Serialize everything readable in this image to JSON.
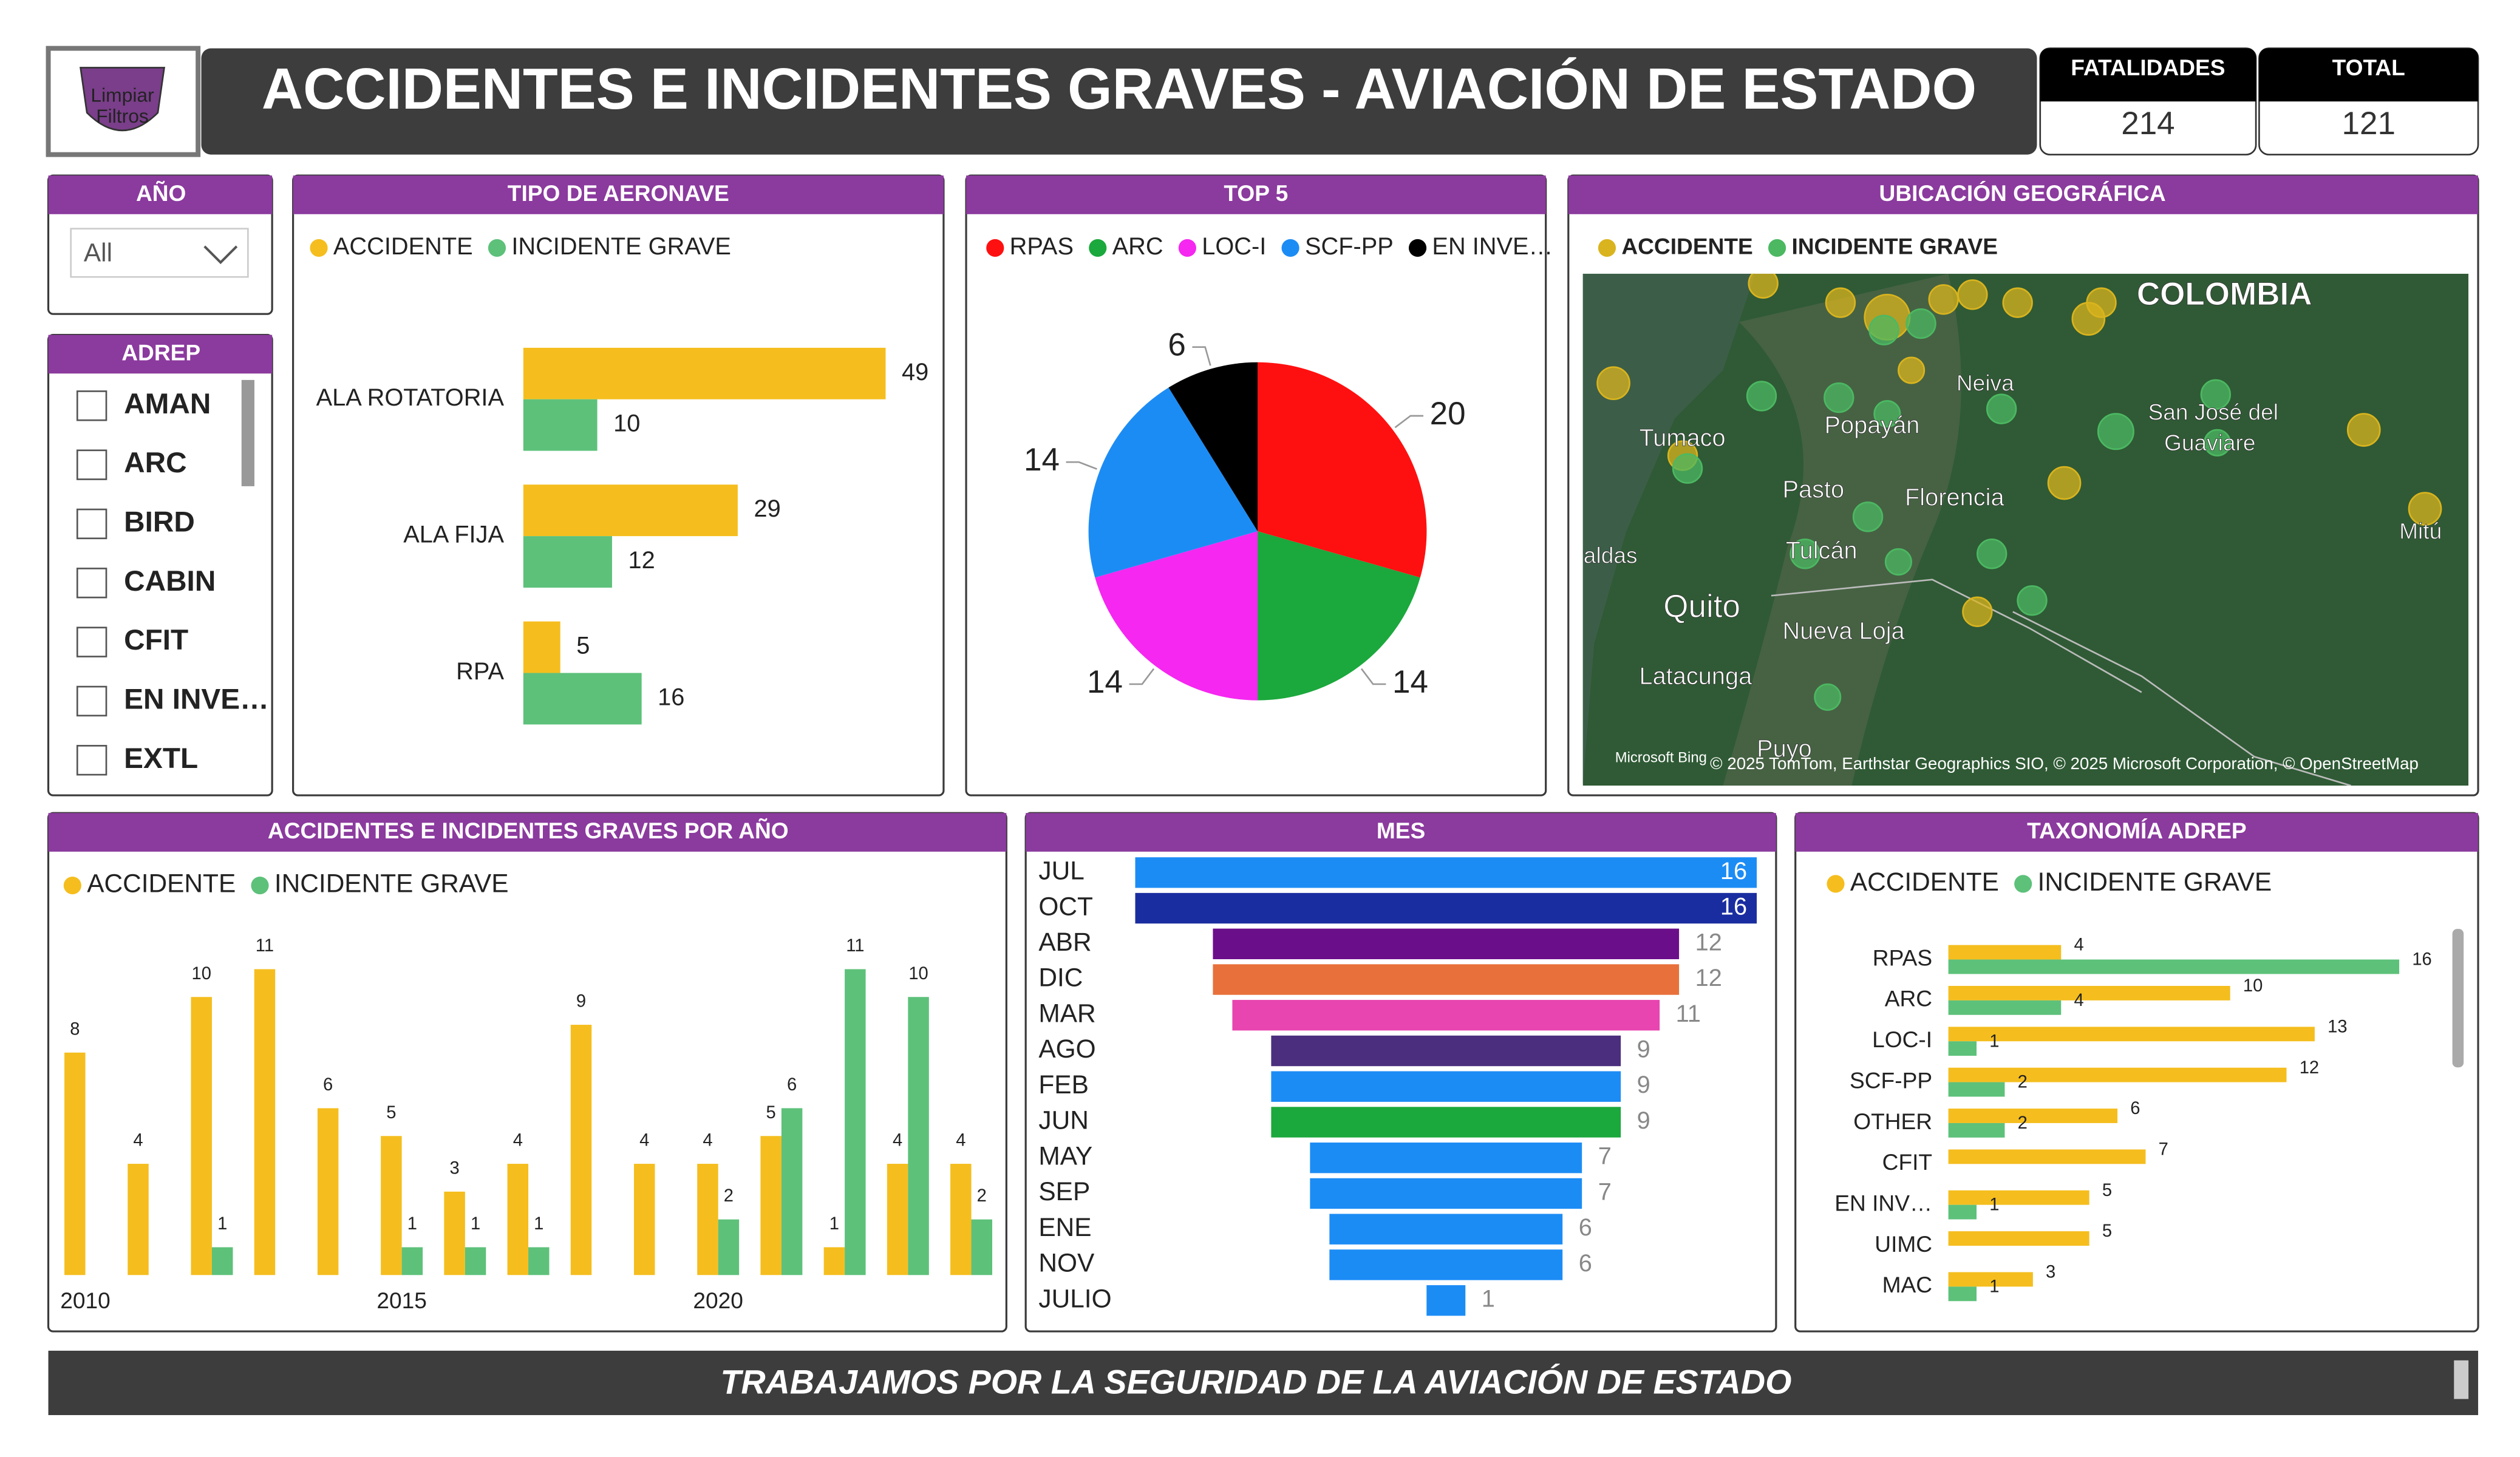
{
  "header": {
    "logo_lines": [
      "Limpiar",
      "Filtros"
    ],
    "title": "ACCIDENTES E INCIDENTES GRAVES - AVIACIÓN DE ESTADO"
  },
  "kpis": [
    {
      "label": "FATALIDADES",
      "value": 214
    },
    {
      "label": "TOTAL",
      "value": 121
    }
  ],
  "slicers": {
    "year": {
      "title": "AÑO",
      "selected": "All"
    },
    "adrep": {
      "title": "ADREP",
      "items": [
        "AMAN",
        "ARC",
        "BIRD",
        "CABIN",
        "CFIT",
        "EN INVE…",
        "EXTL"
      ]
    }
  },
  "chart_data": [
    {
      "type": "bar",
      "orientation": "horizontal",
      "title": "TIPO DE AERONAVE",
      "categories": [
        "ALA ROTATORIA",
        "ALA FIJA",
        "RPA"
      ],
      "series": [
        {
          "name": "ACCIDENTE",
          "color": "#F5BE1E",
          "values": [
            49,
            29,
            5
          ]
        },
        {
          "name": "INCIDENTE GRAVE",
          "color": "#5DC17A",
          "values": [
            10,
            12,
            16
          ]
        }
      ]
    },
    {
      "type": "pie",
      "title": "TOP 5",
      "categories": [
        "RPAS",
        "ARC",
        "LOC-I",
        "SCF-PP",
        "EN INVE…"
      ],
      "values": [
        20,
        14,
        14,
        14,
        6
      ],
      "colors": [
        "#FF1010",
        "#1BA83C",
        "#F527F0",
        "#1C8CF5",
        "#000000"
      ]
    },
    {
      "type": "bar",
      "orientation": "vertical",
      "title": "ACCIDENTES E INCIDENTES GRAVES POR AÑO",
      "categories": [
        "2010",
        null,
        null,
        null,
        null,
        "2015",
        null,
        null,
        null,
        null,
        "2020",
        null,
        null,
        null,
        null
      ],
      "series": [
        {
          "name": "ACCIDENTE",
          "color": "#F5BE1E",
          "values": [
            8,
            4,
            10,
            11,
            6,
            5,
            3,
            4,
            9,
            4,
            4,
            5,
            1,
            4,
            4
          ]
        },
        {
          "name": "INCIDENTE GRAVE",
          "color": "#5DC17A",
          "values": [
            null,
            null,
            1,
            null,
            null,
            1,
            1,
            1,
            null,
            null,
            2,
            6,
            11,
            10,
            2
          ]
        }
      ]
    },
    {
      "type": "funnel",
      "title": "MES",
      "categories": [
        "JUL",
        "OCT",
        "ABR",
        "DIC",
        "MAR",
        "AGO",
        "FEB",
        "JUN",
        "MAY",
        "SEP",
        "ENE",
        "NOV",
        "JULIO"
      ],
      "values": [
        16,
        16,
        12,
        12,
        11,
        9,
        9,
        9,
        7,
        7,
        6,
        6,
        1
      ],
      "colors": [
        "#1C8CF5",
        "#1A2DA0",
        "#6B0E8A",
        "#E8703A",
        "#E845B0",
        "#4B2F7E",
        "#1C8CF5",
        "#1BA83C",
        "#1C8CF5",
        "#1C8CF5",
        "#1C8CF5",
        "#1C8CF5",
        "#1C8CF5"
      ]
    },
    {
      "type": "bar",
      "orientation": "horizontal",
      "title": "TAXONOMÍA ADREP",
      "categories": [
        "RPAS",
        "ARC",
        "LOC-I",
        "SCF-PP",
        "OTHER",
        "CFIT",
        "EN INV…",
        "UIMC",
        "MAC"
      ],
      "series": [
        {
          "name": "ACCIDENTE",
          "color": "#F5BE1E",
          "values": [
            4,
            10,
            13,
            12,
            6,
            7,
            5,
            5,
            3
          ]
        },
        {
          "name": "INCIDENTE GRAVE",
          "color": "#5DC17A",
          "values": [
            16,
            4,
            1,
            2,
            2,
            null,
            1,
            null,
            1
          ]
        }
      ]
    }
  ],
  "map": {
    "title": "UBICACIÓN GEOGRÁFICA",
    "series": [
      {
        "name": "ACCIDENTE",
        "color": "#D9B41E"
      },
      {
        "name": "INCIDENTE GRAVE",
        "color": "#4CB862"
      }
    ],
    "places": [
      "COLOMBIA",
      "Neiva",
      "Tumaco",
      "Popayán",
      "San José del",
      "Guaviare",
      "Pasto",
      "Florencia",
      "Mitú",
      "Esmeraldas",
      "Tulcán",
      "Quito",
      "Nueva Loja",
      "Latacunga",
      "Puyo"
    ],
    "provider": "Microsoft Bing",
    "credit": "© 2025 TomTom, Earthstar Geographics SIO, © 2025 Microsoft Corporation, © OpenStreetMap"
  },
  "footer": "TRABAJAMOS POR LA SEGURIDAD DE LA AVIACIÓN DE ESTADO"
}
